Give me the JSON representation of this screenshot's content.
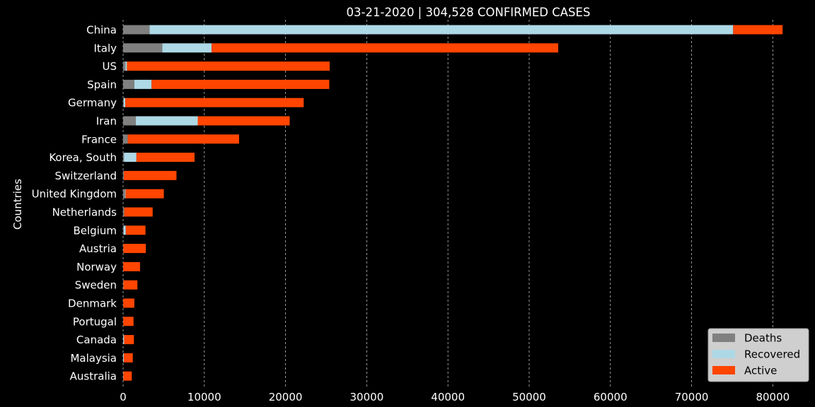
{
  "chart_data": {
    "type": "bar",
    "orientation": "horizontal",
    "stacked": true,
    "title": "03-21-2020 | 304,528 CONFIRMED CASES",
    "xlabel": "",
    "ylabel": "Countries",
    "xlim": [
      0,
      84500
    ],
    "xticks": [
      0,
      10000,
      20000,
      30000,
      40000,
      50000,
      60000,
      70000,
      80000
    ],
    "grid": "vertical dashed",
    "legend_position": "bottom-right",
    "categories": [
      "China",
      "Italy",
      "US",
      "Spain",
      "Germany",
      "Iran",
      "France",
      "Korea, South",
      "Switzerland",
      "United Kingdom",
      "Netherlands",
      "Belgium",
      "Austria",
      "Norway",
      "Sweden",
      "Denmark",
      "Portugal",
      "Canada",
      "Malaysia",
      "Australia"
    ],
    "series": [
      {
        "name": "Deaths",
        "color": "#808080",
        "values": [
          3261,
          4825,
          302,
          1381,
          84,
          1556,
          562,
          102,
          80,
          234,
          137,
          67,
          16,
          7,
          20,
          9,
          12,
          13,
          8,
          7
        ]
      },
      {
        "name": "Recovered",
        "color": "#add8e6",
        "values": [
          71857,
          6072,
          171,
          2125,
          180,
          7635,
          12,
          1540,
          15,
          67,
          2,
          263,
          9,
          1,
          16,
          1,
          5,
          112,
          87,
          26
        ]
      },
      {
        "name": "Active",
        "color": "#ff4500",
        "values": [
          6091,
          42681,
          24964,
          21883,
          21974,
          11323,
          13706,
          7157,
          6478,
          4717,
          3500,
          2428,
          2774,
          2078,
          1726,
          1376,
          1268,
          1206,
          1100,
          1038
        ]
      }
    ]
  }
}
